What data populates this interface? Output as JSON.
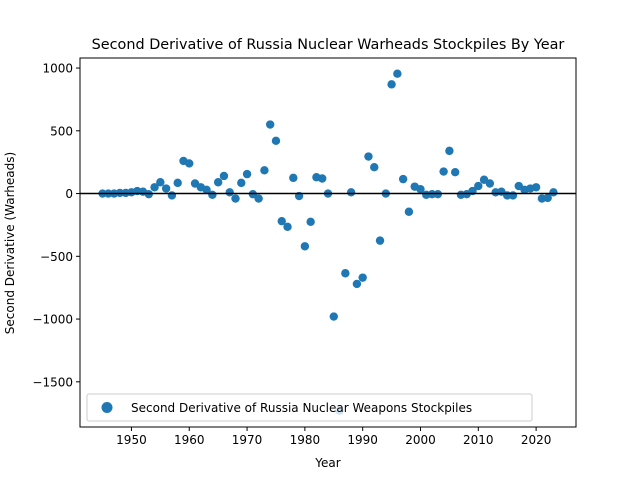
{
  "chart_data": {
    "type": "scatter",
    "title": "Second Derivative of Russia Nuclear Warheads Stockpiles By Year",
    "xlabel": "Year",
    "ylabel": "Second Derivative (Warheads)",
    "xlim": [
      1941.1,
      2026.9
    ],
    "ylim": [
      -1860,
      1080
    ],
    "xticks": [
      1950,
      1960,
      1970,
      1980,
      1990,
      2000,
      2010,
      2020
    ],
    "xtick_labels": [
      "1950",
      "1960",
      "1970",
      "1980",
      "1990",
      "2000",
      "2010",
      "2020"
    ],
    "yticks": [
      -1500,
      -1000,
      -500,
      0,
      500,
      1000
    ],
    "ytick_labels": [
      "−1500",
      "−1000",
      "−500",
      "0",
      "500",
      "1000"
    ],
    "reference_line_y": 0,
    "grid": false,
    "legend_position": "lower left",
    "colors": {
      "series": "#1f77b4",
      "reference_line": "#000000"
    },
    "series": [
      {
        "name": "Second Derivative of Russia Nuclear Weapons Stockpiles",
        "x": [
          1945,
          1946,
          1947,
          1948,
          1949,
          1950,
          1951,
          1952,
          1953,
          1954,
          1955,
          1956,
          1957,
          1958,
          1959,
          1960,
          1961,
          1962,
          1963,
          1964,
          1965,
          1966,
          1967,
          1968,
          1969,
          1970,
          1971,
          1972,
          1973,
          1974,
          1975,
          1976,
          1977,
          1978,
          1979,
          1980,
          1981,
          1982,
          1983,
          1984,
          1985,
          1986,
          1987,
          1988,
          1989,
          1990,
          1991,
          1992,
          1993,
          1994,
          1995,
          1996,
          1997,
          1998,
          1999,
          2000,
          2001,
          2002,
          2003,
          2004,
          2005,
          2006,
          2007,
          2008,
          2009,
          2010,
          2011,
          2012,
          2013,
          2014,
          2015,
          2016,
          2017,
          2018,
          2019,
          2020,
          2021,
          2022,
          2023
        ],
        "y": [
          0,
          0,
          0,
          5,
          5,
          10,
          20,
          15,
          -5,
          50,
          90,
          40,
          -15,
          85,
          260,
          240,
          80,
          50,
          30,
          -10,
          90,
          140,
          10,
          -40,
          85,
          155,
          -5,
          -40,
          185,
          550,
          420,
          -220,
          -265,
          125,
          -20,
          -420,
          -225,
          130,
          120,
          0,
          -980,
          -1730,
          -635,
          10,
          -720,
          -670,
          295,
          210,
          -375,
          0,
          870,
          955,
          115,
          -145,
          55,
          35,
          -10,
          -5,
          -5,
          175,
          340,
          170,
          -10,
          -5,
          20,
          60,
          110,
          80,
          10,
          15,
          -15,
          -15,
          60,
          30,
          40,
          50,
          -40,
          -35,
          10
        ]
      }
    ]
  }
}
